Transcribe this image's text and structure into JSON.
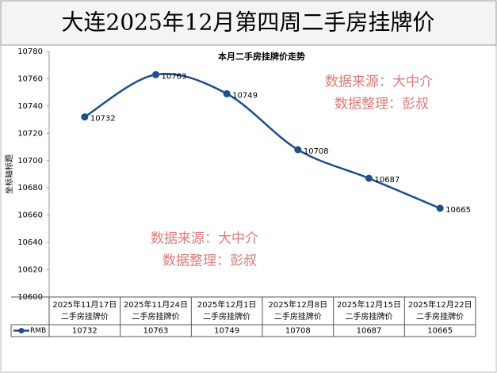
{
  "chart_data": {
    "type": "line",
    "title": "大连2025年12月第四周二手房挂牌价",
    "subtitle": "本月二手房挂牌价走势",
    "y_label": "坐标轴标题",
    "categories": [
      "2025年11月17日",
      "2025年11月24日",
      "2025年12月1日",
      "2025年12月8日",
      "2025年12月15日",
      "2025年12月22日"
    ],
    "category_caption": "二手房挂牌价",
    "series": [
      {
        "name": "RMB",
        "color": "#1f4e8c",
        "values": [
          10732,
          10763,
          10749,
          10708,
          10687,
          10665
        ]
      }
    ],
    "ylim": [
      10600,
      10780
    ],
    "yticks": [
      10600,
      10620,
      10640,
      10660,
      10680,
      10700,
      10720,
      10740,
      10760,
      10780
    ],
    "watermark": [
      "数据来源：大中介",
      "数据整理：彭叔"
    ]
  }
}
